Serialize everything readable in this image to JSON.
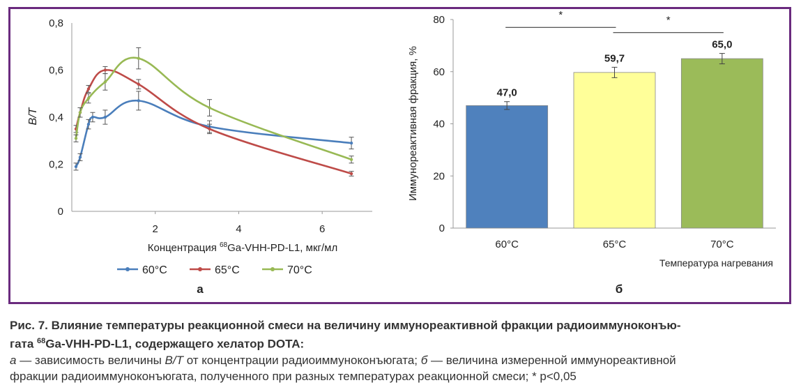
{
  "chart_data": [
    {
      "type": "line",
      "panel_label": "а",
      "ylabel": "B/T",
      "xlabel_prefix": "Концентрация ",
      "xlabel_sup": "68",
      "xlabel_suffix": "Ga-VHH-PD-L1, мкг/мл",
      "xlim": [
        0,
        7.2
      ],
      "ylim": [
        0,
        0.8
      ],
      "xticks": [
        "2",
        "4",
        "6"
      ],
      "yticks": [
        "0",
        "0,2",
        "0,4",
        "0,6",
        "0,8"
      ],
      "legend_position": "bottom",
      "series": [
        {
          "name": "60°C",
          "color": "#4a7ebb",
          "points": [
            [
              0.1,
              0.19
            ],
            [
              0.2,
              0.23
            ],
            [
              0.4,
              0.37
            ],
            [
              0.5,
              0.4
            ],
            [
              0.8,
              0.4
            ],
            [
              1.6,
              0.47
            ],
            [
              3.3,
              0.36
            ],
            [
              6.7,
              0.29
            ]
          ],
          "errors": [
            0.015,
            0.015,
            0.02,
            0.02,
            0.03,
            0.04,
            0.025,
            0.025
          ]
        },
        {
          "name": "65°C",
          "color": "#be4b48",
          "points": [
            [
              0.1,
              0.35
            ],
            [
              0.2,
              0.42
            ],
            [
              0.4,
              0.52
            ],
            [
              0.8,
              0.6
            ],
            [
              1.6,
              0.54
            ],
            [
              3.3,
              0.35
            ],
            [
              6.7,
              0.16
            ]
          ],
          "errors": [
            0.015,
            0.02,
            0.015,
            0.015,
            0.02,
            0.02,
            0.01
          ]
        },
        {
          "name": "70°C",
          "color": "#98b954",
          "points": [
            [
              0.1,
              0.31
            ],
            [
              0.2,
              0.42
            ],
            [
              0.4,
              0.48
            ],
            [
              0.8,
              0.55
            ],
            [
              1.6,
              0.65
            ],
            [
              3.3,
              0.44
            ],
            [
              6.7,
              0.22
            ]
          ],
          "errors": [
            0.015,
            0.02,
            0.02,
            0.035,
            0.045,
            0.035,
            0.015
          ]
        }
      ]
    },
    {
      "type": "bar",
      "panel_label": "б",
      "ylabel": "Иммунореактивная фракция, %",
      "xlabel": "Температура нагревания",
      "ylim": [
        0,
        80
      ],
      "yticks": [
        "0",
        "20",
        "40",
        "60",
        "80"
      ],
      "categories": [
        "60°C",
        "65°C",
        "70°C"
      ],
      "values": [
        47.0,
        59.7,
        65.0
      ],
      "value_labels": [
        "47,0",
        "59,7",
        "65,0"
      ],
      "errors": [
        1.5,
        2.0,
        2.0
      ],
      "colors": [
        "#4f81bd",
        "#ffff99",
        "#9bbb59"
      ],
      "significance": [
        {
          "from": 0,
          "to": 1,
          "level": 77,
          "label": "*"
        },
        {
          "from": 1,
          "to": 2,
          "level": 75,
          "label": "*"
        }
      ]
    }
  ],
  "caption": {
    "title_part1": "Рис. 7. Влияние температуры реакционной смеси на величину иммунореактивной фракции радиоиммуноконъю-",
    "title_part2_prefix": "гата ",
    "title_part2_sup": "68",
    "title_part2_suffix": "Ga-VHH-PD-L1, содержащего хелатор DOTA:",
    "a_letter": "а",
    "a_text_1": " — зависимость величины ",
    "a_bt": "B/T",
    "a_text_2": " от концентрации радиоиммуноконъюгата; ",
    "b_letter": "б",
    "b_text": " — величина измеренной иммунореактивной",
    "line4": "фракции радиоиммуноконъюгата, полученного при разных температурах реакционной смеси; * p<0,05"
  }
}
